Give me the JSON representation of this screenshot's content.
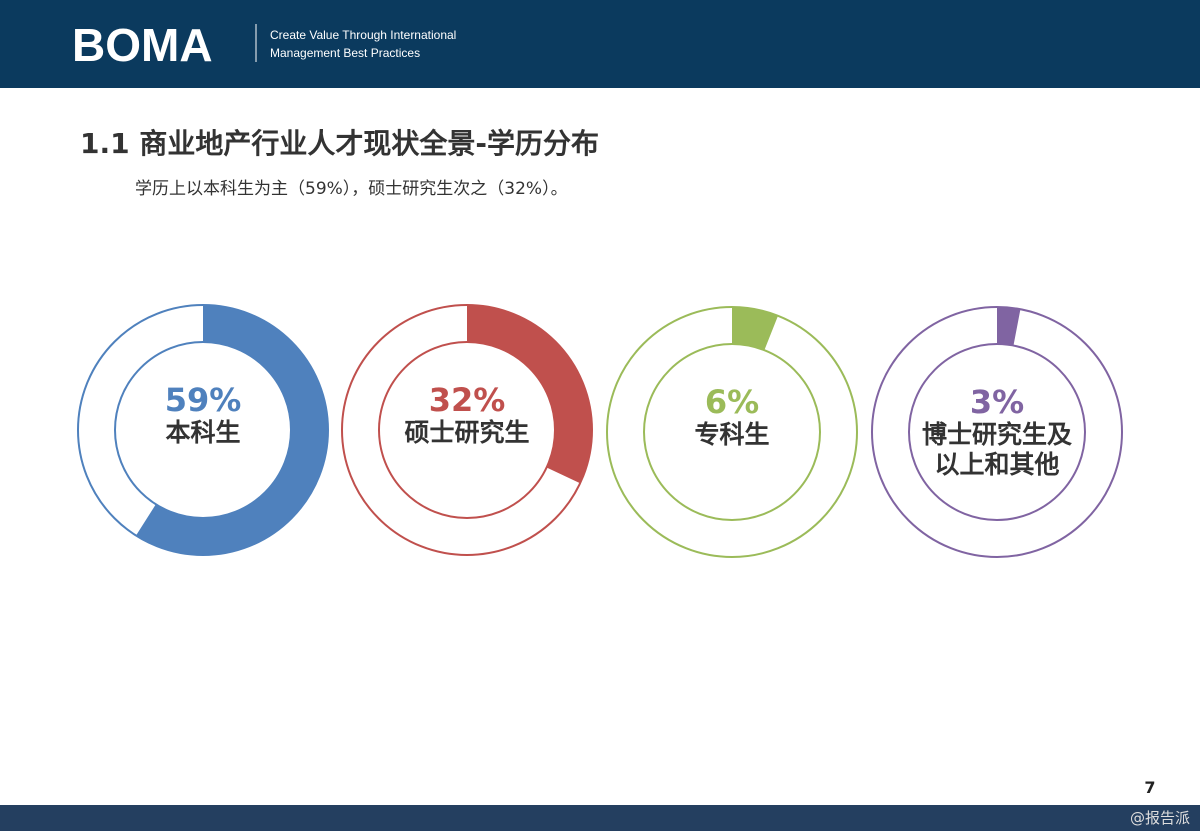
{
  "header": {
    "logo": "BOMA",
    "tagline_lines": [
      "Create Value Through International",
      "Management Best Practices"
    ]
  },
  "title": "1.1 商业地产行业人才现状全景-学历分布",
  "subtitle": "学历上以本科生为主（59%），硕士研究生次之（32%）。",
  "page_number": "7",
  "watermark": "@报告派",
  "chart_data": [
    {
      "type": "donut",
      "categories": [
        "本科生"
      ],
      "values": [
        59
      ],
      "value_labels": [
        "59%"
      ],
      "color": "#4f81bd",
      "ylim": [
        0,
        100
      ]
    },
    {
      "type": "donut",
      "categories": [
        "硕士研究生"
      ],
      "values": [
        32
      ],
      "value_labels": [
        "32%"
      ],
      "color": "#c0504d",
      "ylim": [
        0,
        100
      ]
    },
    {
      "type": "donut",
      "categories": [
        "专科生"
      ],
      "values": [
        6
      ],
      "value_labels": [
        "6%"
      ],
      "color": "#9bbb59",
      "ylim": [
        0,
        100
      ]
    },
    {
      "type": "donut",
      "categories": [
        "博士研究生及以上和其他"
      ],
      "values": [
        3
      ],
      "value_labels": [
        "3%"
      ],
      "color": "#8064a2",
      "ylim": [
        0,
        100
      ]
    }
  ]
}
